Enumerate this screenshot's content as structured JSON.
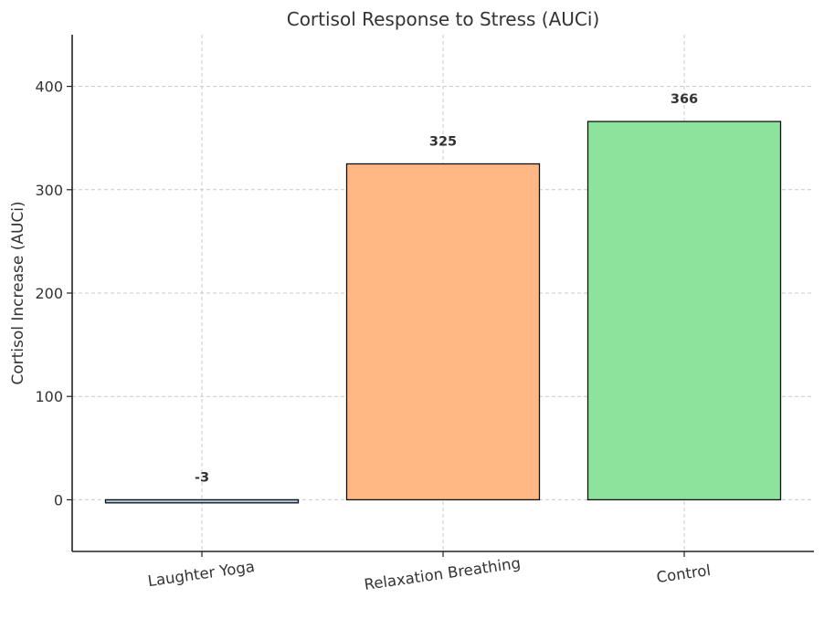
{
  "chart_data": {
    "type": "bar",
    "title": "Cortisol Response to Stress (AUCi)",
    "xlabel": "",
    "ylabel": "Cortisol Increase (AUCi)",
    "categories": [
      "Laughter Yoga",
      "Relaxation Breathing",
      "Control"
    ],
    "values": [
      -3,
      325,
      366
    ],
    "data_labels": [
      "-3",
      "325",
      "366"
    ],
    "colors": [
      "#a8c4e0",
      "#ffb784",
      "#8de39c"
    ],
    "ylim": [
      -50,
      450
    ],
    "yticks": [
      0,
      100,
      200,
      300,
      400
    ],
    "ytick_labels": [
      "0",
      "100",
      "200",
      "300",
      "400"
    ],
    "grid": true,
    "legend": "none"
  }
}
